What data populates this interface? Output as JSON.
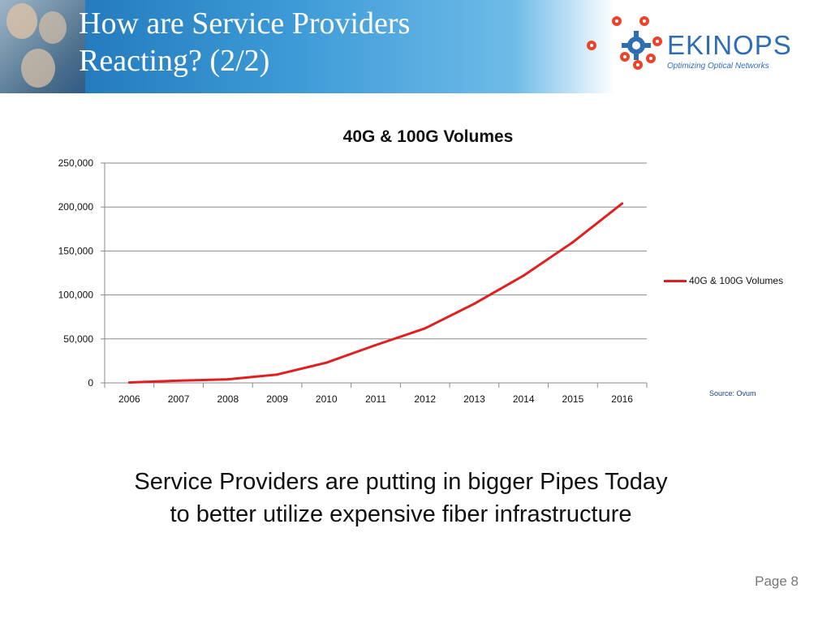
{
  "header": {
    "title_line1": "How are Service Providers",
    "title_line2": "Reacting? (2/2)",
    "logo_name": "EKINOPS",
    "logo_tagline": "Optimizing Optical Networks"
  },
  "chart_data": {
    "type": "line",
    "title": "40G & 100G Volumes",
    "xlabel": "",
    "ylabel": "",
    "categories": [
      "2006",
      "2007",
      "2008",
      "2009",
      "2010",
      "2011",
      "2012",
      "2013",
      "2014",
      "2015",
      "2016"
    ],
    "series": [
      {
        "name": "40G & 100G Volumes",
        "color": "#e02020",
        "values": [
          500,
          2500,
          4000,
          9500,
          23000,
          43000,
          62000,
          90000,
          122000,
          160000,
          204000
        ]
      }
    ],
    "ylim": [
      0,
      250000
    ],
    "yticks": [
      "0",
      "50,000",
      "100,000",
      "150,000",
      "200,000",
      "250,000"
    ],
    "ytick_values": [
      0,
      50000,
      100000,
      150000,
      200000,
      250000
    ],
    "grid": true,
    "legend": "right"
  },
  "source_note": "Source: Ovum",
  "caption": {
    "line1": "Service Providers are putting in bigger Pipes Today",
    "line2": "to better utilize expensive fiber infrastructure"
  },
  "footer": {
    "page": "Page 8"
  },
  "colors": {
    "brand": "#2f6db3",
    "logo_dots": "#e8452c",
    "series": "#e02020"
  }
}
